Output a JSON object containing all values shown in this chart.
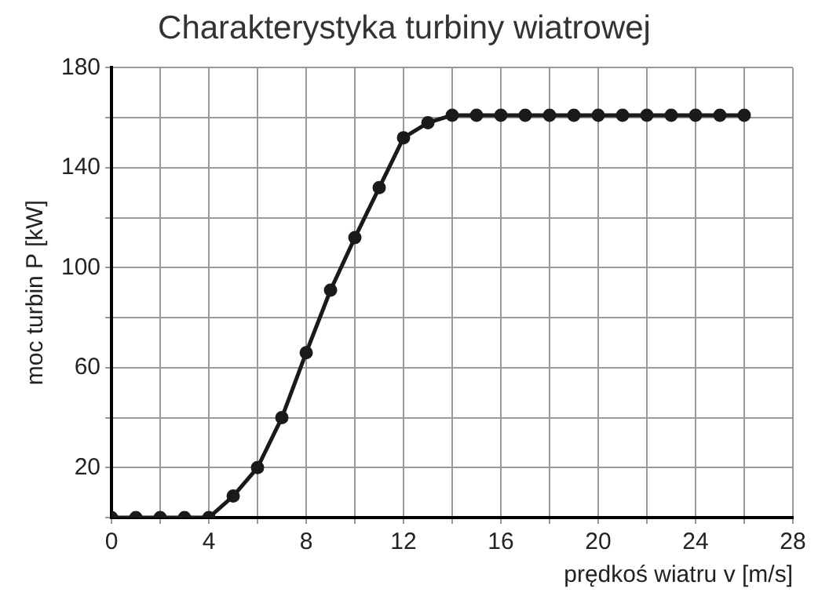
{
  "chart_data": {
    "type": "line",
    "title": "Charakterystyka turbiny wiatrowej",
    "xlabel": "prędkoś wiatru v [m/s]",
    "ylabel": "moc turbin P [kW]",
    "x": [
      0,
      1,
      2,
      3,
      4,
      5,
      6,
      7,
      8,
      9,
      10,
      11,
      12,
      13,
      14,
      15,
      16,
      17,
      18,
      19,
      20,
      21,
      22,
      23,
      24,
      25,
      26
    ],
    "series": [
      {
        "color": "#1a1a1a",
        "values": [
          0,
          0,
          0,
          0,
          0,
          8.6,
          20,
          40,
          66,
          91,
          112,
          132,
          152,
          158,
          161,
          161,
          161,
          161,
          161,
          161,
          161,
          161,
          161,
          161,
          161,
          161,
          161
        ]
      }
    ],
    "xlim": [
      0,
      28
    ],
    "ylim": [
      0,
      180
    ],
    "xticks": [
      0,
      {
        "value": 2,
        "label": null
      },
      4,
      {
        "value": 6,
        "label": null
      },
      8,
      {
        "value": 10,
        "label": null
      },
      12,
      {
        "value": 14,
        "label": null
      },
      16,
      {
        "value": 18,
        "label": null
      },
      20,
      {
        "value": 22,
        "label": null
      },
      24,
      {
        "value": 26,
        "label": null
      },
      28
    ],
    "yticks": [
      {
        "value": 0,
        "label": null
      },
      20,
      {
        "value": 40,
        "label": null
      },
      60,
      {
        "value": 80,
        "label": null
      },
      100,
      {
        "value": 120,
        "label": null
      },
      140,
      {
        "value": 160,
        "label": null
      },
      180
    ],
    "grid": true,
    "legend": false,
    "marker": "circle",
    "line_style": "solid"
  }
}
